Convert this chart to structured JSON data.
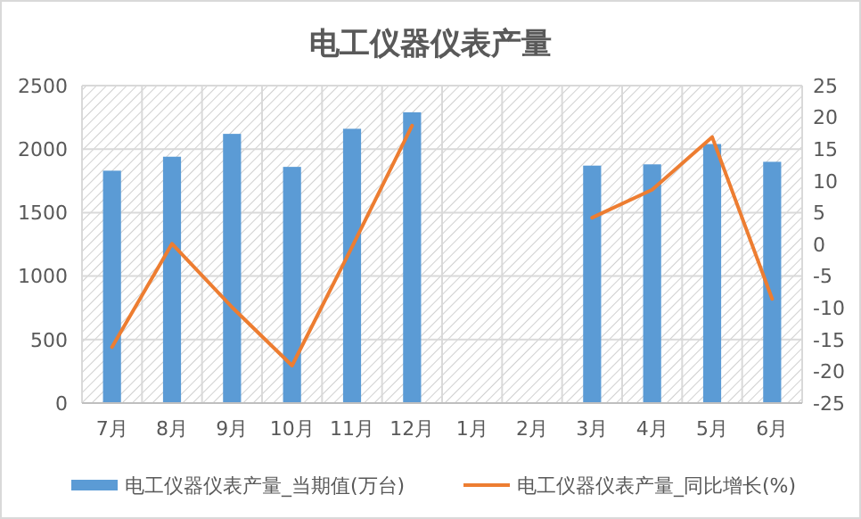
{
  "chart_data": {
    "type": "bar",
    "title": "电工仪器仪表产量",
    "categories": [
      "7月",
      "8月",
      "9月",
      "10月",
      "11月",
      "12月",
      "1月",
      "2月",
      "3月",
      "4月",
      "5月",
      "6月"
    ],
    "series": [
      {
        "name": "电工仪器仪表产量_当期值(万台)",
        "color": "#5b9bd5",
        "values": [
          1830,
          1940,
          2120,
          1860,
          2160,
          2290,
          null,
          null,
          1870,
          1880,
          2040,
          1900
        ]
      },
      {
        "name": "电工仪器仪表产量_同比增长(%)",
        "type": "line",
        "axis": "y2",
        "color": "#ed7d31",
        "values": [
          -16.2,
          0.1,
          -9.9,
          -19.1,
          -0.4,
          18.7,
          null,
          null,
          4.2,
          8.6,
          16.9,
          -8.6
        ]
      }
    ],
    "ylim": [
      0,
      2500
    ],
    "yticks": [
      0,
      500,
      1000,
      1500,
      2000,
      2500
    ],
    "y2lim": [
      -25,
      25
    ],
    "y2ticks": [
      -25,
      -20,
      -15,
      -10,
      -5,
      0,
      5,
      10,
      15,
      20,
      25
    ],
    "grid": true,
    "legend": "bottom",
    "marker": "none",
    "line_style": "solid"
  }
}
